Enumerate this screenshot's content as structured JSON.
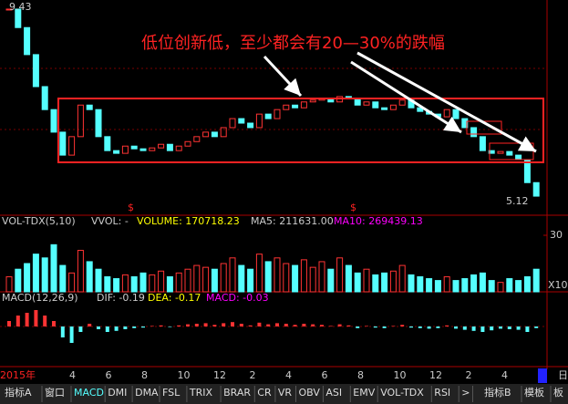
{
  "price_panel": {
    "high_label": 9.43,
    "low_label": 5.12,
    "annotation": "低位创新低，至少都会有20—30%的跌幅",
    "marker": "$",
    "closes": [
      9.39,
      8.98,
      8.38,
      7.67,
      7.16,
      6.66,
      6.15,
      6.56,
      7.26,
      7.16,
      6.56,
      6.25,
      6.19,
      6.35,
      6.29,
      6.25,
      6.31,
      6.39,
      6.25,
      6.35,
      6.45,
      6.56,
      6.66,
      6.56,
      6.76,
      6.96,
      6.86,
      6.76,
      7.06,
      6.96,
      7.16,
      7.26,
      7.2,
      7.33,
      7.37,
      7.41,
      7.33,
      7.45,
      7.41,
      7.26,
      7.33,
      7.2,
      7.16,
      7.26,
      7.37,
      7.2,
      7.12,
      7.06,
      7.0,
      7.16,
      6.96,
      6.76,
      6.56,
      6.25,
      6.19,
      6.23,
      6.15,
      6.05,
      5.54,
      5.24
    ]
  },
  "volume_panel": {
    "name": "VOL-TDX(5,10)",
    "vvol": "VVOL: -",
    "volume": "VOLUME: 170718.23",
    "ma5": "MA5: 211631.00",
    "ma10": "MA10: 269439.13",
    "axis_top": 30,
    "axis_unit": "X10",
    "values": [
      8,
      12,
      15,
      20,
      18,
      25,
      14,
      10,
      22,
      16,
      12,
      8,
      7,
      9,
      8,
      10,
      9,
      11,
      8,
      10,
      12,
      14,
      13,
      12,
      15,
      18,
      14,
      12,
      20,
      16,
      18,
      15,
      14,
      17,
      13,
      16,
      12,
      18,
      14,
      10,
      12,
      9,
      10,
      11,
      14,
      9,
      8,
      7,
      6,
      8,
      6,
      7,
      9,
      10,
      6,
      5,
      7,
      6,
      8,
      12
    ]
  },
  "macd_panel": {
    "name": "MACD(12,26,9)",
    "dif": "DIF: -0.19",
    "dea": "DEA: -0.17",
    "macd": "MACD: -0.03",
    "values": [
      0.1,
      0.2,
      0.25,
      0.3,
      0.2,
      0.1,
      -0.2,
      -0.3,
      -0.1,
      0.05,
      -0.05,
      -0.1,
      -0.08,
      -0.05,
      -0.03,
      -0.02,
      0.01,
      0.02,
      -0.01,
      0.02,
      0.04,
      0.05,
      0.06,
      0.03,
      0.06,
      0.08,
      0.05,
      0.02,
      0.07,
      0.04,
      0.06,
      0.05,
      0.03,
      0.05,
      0.04,
      0.03,
      0.01,
      0.04,
      0.02,
      -0.03,
      0.01,
      -0.02,
      -0.03,
      0.01,
      0.03,
      -0.02,
      -0.03,
      -0.04,
      -0.03,
      0.02,
      -0.04,
      -0.06,
      -0.08,
      -0.1,
      -0.07,
      -0.04,
      -0.05,
      -0.06,
      -0.1,
      -0.03
    ]
  },
  "date_axis": {
    "year": "2015年",
    "months": [
      "4",
      "6",
      "8",
      "10",
      "12",
      "2",
      "4",
      "6",
      "8",
      "10",
      "12",
      "2",
      "4"
    ],
    "end": "日"
  },
  "tabs": [
    "指标A",
    "窗口",
    "MACD",
    "DMI",
    "DMA",
    "FSL",
    "TRIX",
    "BRAR",
    "CR",
    "VR",
    "OBV",
    "ASI",
    "EMV",
    "VOL-TDX",
    "RSI",
    ">",
    "指标B",
    "模板",
    "板"
  ]
}
